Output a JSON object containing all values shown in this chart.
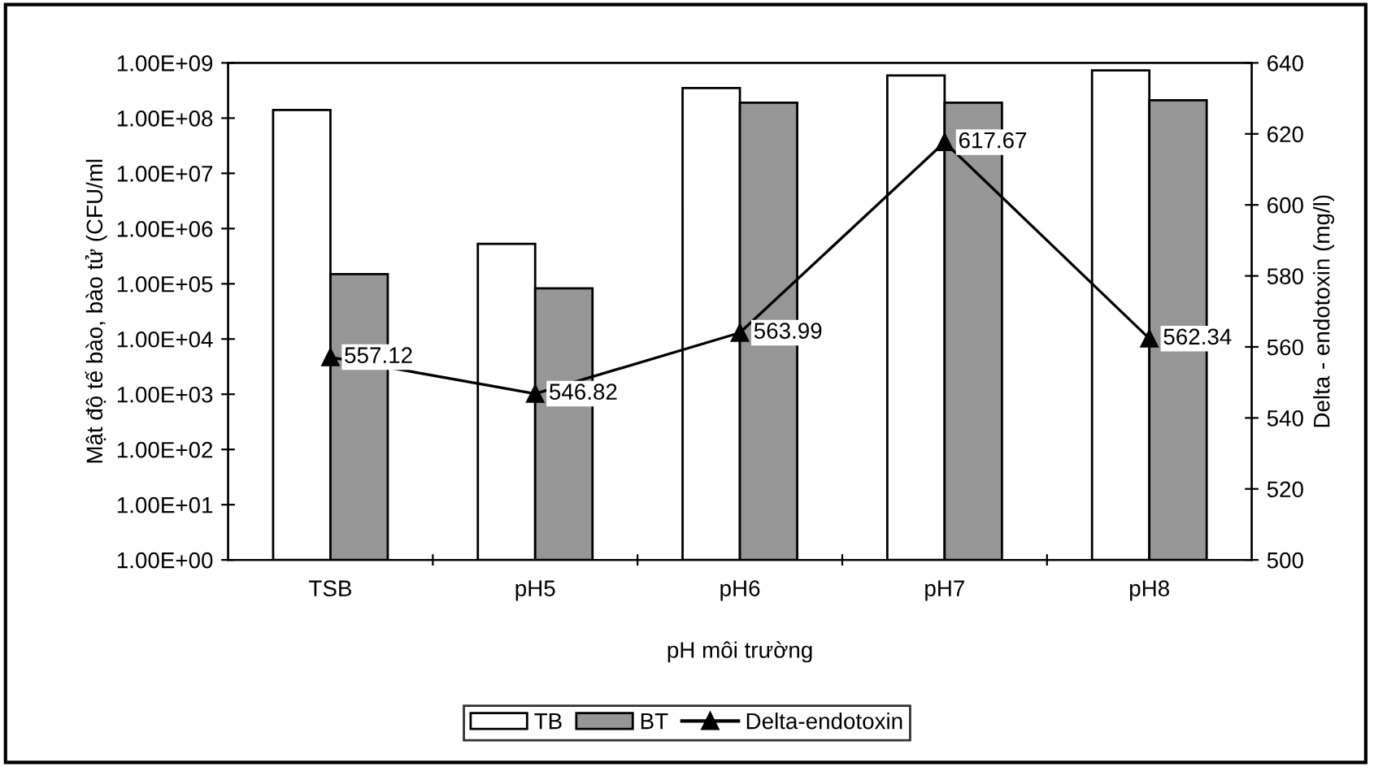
{
  "chart_data": {
    "type": "bar",
    "categories": [
      "TSB",
      "pH5",
      "pH6",
      "pH7",
      "pH8"
    ],
    "xlabel": "pH môi trường",
    "ylabel": "Mật độ tế bào, bào tử (CFU/ml",
    "y2label": "Delta - endotoxin (mg/l)",
    "log": "y",
    "ylim": [
      1,
      1000000000
    ],
    "yticks": [
      {
        "value": 1,
        "label": "1.00E+00"
      },
      {
        "value": 10,
        "label": "1.00E+01"
      },
      {
        "value": 100,
        "label": "1.00E+02"
      },
      {
        "value": 1000,
        "label": "1.00E+03"
      },
      {
        "value": 10000,
        "label": "1.00E+04"
      },
      {
        "value": 100000,
        "label": "1.00E+05"
      },
      {
        "value": 1000000,
        "label": "1.00E+06"
      },
      {
        "value": 10000000,
        "label": "1.00E+07"
      },
      {
        "value": 100000000,
        "label": "1.00E+08"
      },
      {
        "value": 1000000000,
        "label": "1.00E+09"
      }
    ],
    "y2lim": [
      500,
      640
    ],
    "y2ticks": [
      500,
      520,
      540,
      560,
      580,
      600,
      620,
      640
    ],
    "series": [
      {
        "name": "TB",
        "color": "#ffffff",
        "values": [
          140000000,
          530000,
          350000000,
          590000000,
          730000000
        ]
      },
      {
        "name": "BT",
        "color": "#969696",
        "values": [
          150000,
          83000,
          190000000,
          190000000,
          210000000
        ]
      },
      {
        "name": "Delta-endotoxin",
        "type": "line",
        "axis": "y2",
        "color": "#000000",
        "marker": "triangle",
        "data_labels": true,
        "values": [
          557.12,
          546.82,
          563.99,
          617.67,
          562.34
        ]
      }
    ],
    "legend": "bottom",
    "grid": false
  }
}
